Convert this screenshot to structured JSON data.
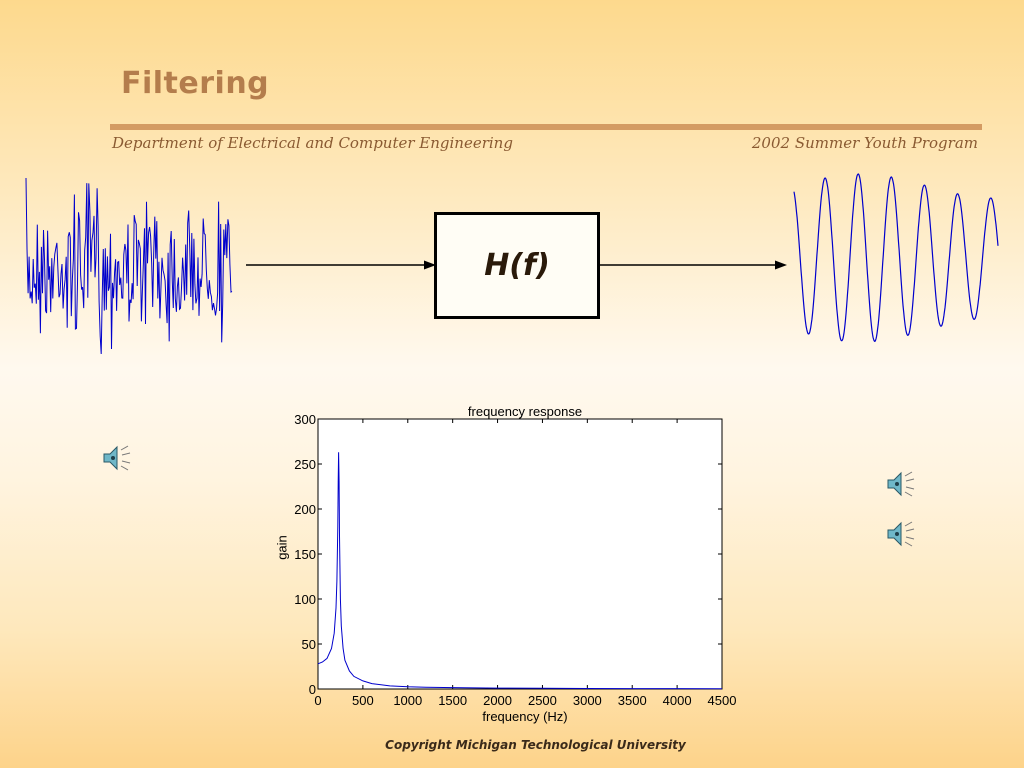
{
  "slide": {
    "title": "Filtering",
    "department": "Department of Electrical and Computer Engineering",
    "program": "2002 Summer Youth Program",
    "copyright": "Copyright Michigan Technological University"
  },
  "diagram": {
    "filter_label": "H(f)"
  },
  "icons": {
    "speaker_left": "speaker-icon",
    "speaker_right_top": "speaker-icon",
    "speaker_right_bottom": "speaker-icon"
  },
  "colors": {
    "title": "#b47d4c",
    "rule": "#d49b63",
    "signal": "#0000cc"
  },
  "chart_data": {
    "type": "line",
    "title": "frequency response",
    "xlabel": "frequency (Hz)",
    "ylabel": "gain",
    "xlim": [
      0,
      4500
    ],
    "ylim": [
      0,
      300
    ],
    "xticks": [
      0,
      500,
      1000,
      1500,
      2000,
      2500,
      3000,
      3500,
      4000,
      4500
    ],
    "yticks": [
      0,
      50,
      100,
      150,
      200,
      250,
      300
    ],
    "xtick_labels": [
      "0",
      "500",
      "1000",
      "1500",
      "2000",
      "2500",
      "3000",
      "3500",
      "4000",
      "4500"
    ],
    "ytick_labels": [
      "0",
      "50",
      "100",
      "150",
      "200",
      "250",
      "300"
    ],
    "grid": false,
    "series": [
      {
        "x": [
          0,
          50,
          100,
          150,
          180,
          200,
          210,
          220,
          225,
          230,
          235,
          240,
          250,
          260,
          280,
          300,
          350,
          400,
          500,
          600,
          800,
          1000,
          1200,
          1500,
          2000,
          2500,
          3000,
          3500,
          4000,
          4500
        ],
        "values": [
          28,
          30,
          34,
          45,
          62,
          90,
          120,
          180,
          230,
          263,
          230,
          170,
          100,
          70,
          45,
          32,
          20,
          14,
          9,
          6,
          3.5,
          2.5,
          2,
          1.5,
          1,
          0.8,
          0.6,
          0.5,
          0.4,
          0.3
        ]
      }
    ]
  }
}
